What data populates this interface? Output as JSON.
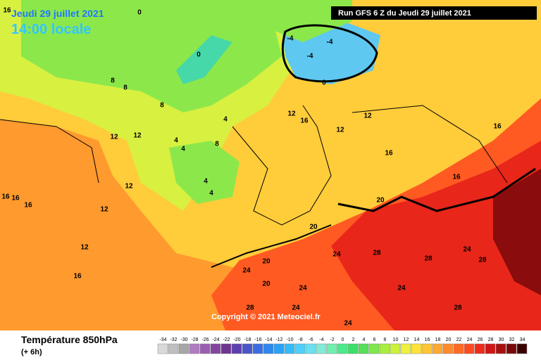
{
  "header": {
    "date": "Jeudi 29 juillet 2021",
    "time": "14:00 locale",
    "run": "Run GFS 6 Z du Jeudi 29 juillet 2021"
  },
  "copyright": "Copyright © 2021 Meteociel.fr",
  "legend": {
    "title": "Température 850hPa",
    "subtitle": "(+ 6h)",
    "ticks": [
      -34,
      -32,
      -30,
      -28,
      -26,
      -24,
      -22,
      -20,
      -18,
      -16,
      -14,
      -12,
      -10,
      -8,
      -6,
      -4,
      -2,
      0,
      2,
      4,
      6,
      8,
      10,
      12,
      14,
      16,
      18,
      20,
      22,
      24,
      26,
      28,
      30,
      32,
      34
    ],
    "colors": [
      "#d9d9d9",
      "#bfbfbf",
      "#a6a6a6",
      "#b07cc0",
      "#9a5fb0",
      "#8445a0",
      "#6c3590",
      "#5b3fb0",
      "#4a55c8",
      "#3a6ee0",
      "#2f88f0",
      "#29a3f5",
      "#33bdf8",
      "#4ed0f8",
      "#6ae0f0",
      "#80ecd8",
      "#6ff0b0",
      "#4de98a",
      "#3ddf6a",
      "#55e055",
      "#80e84a",
      "#a8ee40",
      "#ccf23a",
      "#eef23a",
      "#ffe33a",
      "#ffc535",
      "#ffa830",
      "#ff8a2a",
      "#ff6a25",
      "#ff4a20",
      "#f02a1a",
      "#d01515",
      "#a81010",
      "#7a0808",
      "#3a0000"
    ]
  },
  "contour_labels": [
    16,
    16,
    16,
    16,
    12,
    12,
    12,
    12,
    8,
    8,
    8,
    4,
    4,
    4,
    4,
    0,
    0,
    -4,
    -4,
    -4,
    0,
    12,
    12,
    12,
    16,
    16,
    16,
    16,
    20,
    20,
    20,
    24,
    24,
    24,
    24,
    28,
    28,
    28,
    24,
    24,
    28,
    28,
    24,
    20,
    16,
    12,
    8,
    4
  ]
}
